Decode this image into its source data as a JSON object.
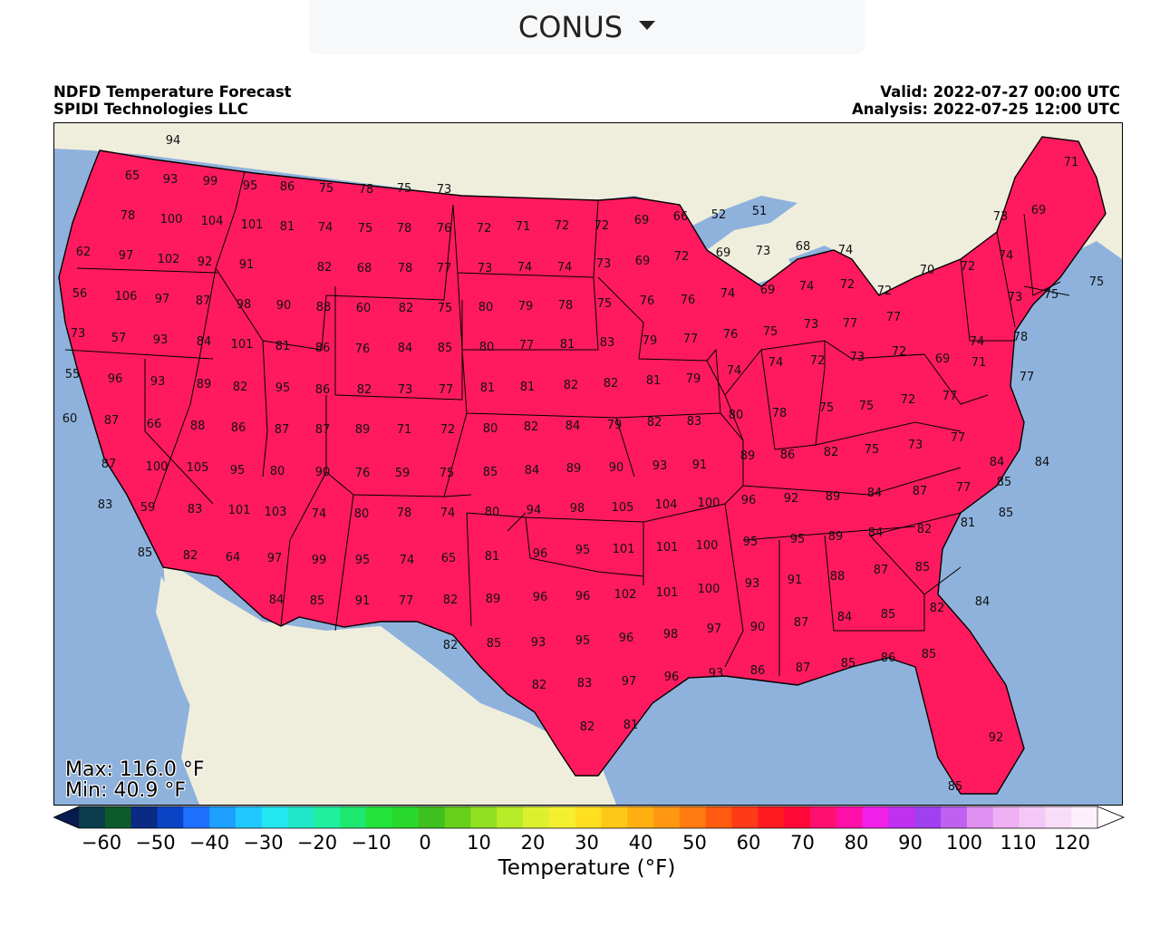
{
  "region_select": {
    "value": "CONUS",
    "icon": "caret-down-icon"
  },
  "header": {
    "title": "NDFD Temperature Forecast",
    "org": "SPIDI Technologies LLC",
    "valid": "Valid: 2022-07-27 00:00 UTC",
    "analysis": "Analysis: 2022-07-25 12:00 UTC"
  },
  "stats": {
    "max": "Max: 116.0 °F",
    "min": "Min: 40.9 °F"
  },
  "colorbar": {
    "label": "Temperature (°F)",
    "ticks": [
      "−60",
      "−50",
      "−40",
      "−30",
      "−20",
      "−10",
      "0",
      "10",
      "20",
      "30",
      "40",
      "50",
      "60",
      "70",
      "80",
      "90",
      "100",
      "110",
      "120"
    ],
    "colors": [
      "#091a4e",
      "#0a3c4b",
      "#0d5a2b",
      "#0a2a84",
      "#0a44c4",
      "#1f6fff",
      "#1ea0ff",
      "#20c8ff",
      "#22e6f0",
      "#1ee8c8",
      "#1ef0a0",
      "#1ee870",
      "#22e43a",
      "#28d82a",
      "#3ec020",
      "#66d01a",
      "#90e020",
      "#b8ec28",
      "#dcf030",
      "#f4f030",
      "#ffe020",
      "#ffc818",
      "#ffb010",
      "#ff9810",
      "#ff7a10",
      "#ff5a10",
      "#ff3a18",
      "#ff1a20",
      "#ff0838",
      "#ff1070",
      "#ff10a8",
      "#f020e8",
      "#c030f0",
      "#a040f0",
      "#c060f0",
      "#e090f0",
      "#f0b0f4",
      "#f4c8f6",
      "#f8dcf8",
      "#fcf0fc",
      "#ffffff"
    ]
  },
  "map": {
    "stations": [
      {
        "v": "94"
      },
      {
        "v": "65"
      },
      {
        "v": "93"
      },
      {
        "v": "99"
      },
      {
        "v": "95"
      },
      {
        "v": "86"
      },
      {
        "v": "75"
      },
      {
        "v": "78"
      },
      {
        "v": "75"
      },
      {
        "v": "73"
      },
      {
        "v": "78"
      },
      {
        "v": "100"
      },
      {
        "v": "104"
      },
      {
        "v": "101"
      },
      {
        "v": "81"
      },
      {
        "v": "74"
      },
      {
        "v": "75"
      },
      {
        "v": "78"
      },
      {
        "v": "76"
      },
      {
        "v": "72"
      },
      {
        "v": "71"
      },
      {
        "v": "72"
      },
      {
        "v": "72"
      },
      {
        "v": "69"
      },
      {
        "v": "66"
      },
      {
        "v": "52"
      },
      {
        "v": "51"
      },
      {
        "v": "71"
      },
      {
        "v": "73"
      },
      {
        "v": "69"
      },
      {
        "v": "62"
      },
      {
        "v": "97"
      },
      {
        "v": "102"
      },
      {
        "v": "92"
      },
      {
        "v": "91"
      },
      {
        "v": "82"
      },
      {
        "v": "68"
      },
      {
        "v": "78"
      },
      {
        "v": "77"
      },
      {
        "v": "73"
      },
      {
        "v": "74"
      },
      {
        "v": "74"
      },
      {
        "v": "73"
      },
      {
        "v": "69"
      },
      {
        "v": "72"
      },
      {
        "v": "69"
      },
      {
        "v": "73"
      },
      {
        "v": "68"
      },
      {
        "v": "74"
      },
      {
        "v": "70"
      },
      {
        "v": "72"
      },
      {
        "v": "74"
      },
      {
        "v": "56"
      },
      {
        "v": "106"
      },
      {
        "v": "97"
      },
      {
        "v": "87"
      },
      {
        "v": "98"
      },
      {
        "v": "90"
      },
      {
        "v": "88"
      },
      {
        "v": "60"
      },
      {
        "v": "82"
      },
      {
        "v": "75"
      },
      {
        "v": "80"
      },
      {
        "v": "79"
      },
      {
        "v": "78"
      },
      {
        "v": "75"
      },
      {
        "v": "76"
      },
      {
        "v": "76"
      },
      {
        "v": "74"
      },
      {
        "v": "69"
      },
      {
        "v": "74"
      },
      {
        "v": "72"
      },
      {
        "v": "72"
      },
      {
        "v": "73"
      },
      {
        "v": "75"
      },
      {
        "v": "75"
      },
      {
        "v": "73"
      },
      {
        "v": "57"
      },
      {
        "v": "93"
      },
      {
        "v": "84"
      },
      {
        "v": "101"
      },
      {
        "v": "81"
      },
      {
        "v": "86"
      },
      {
        "v": "76"
      },
      {
        "v": "84"
      },
      {
        "v": "85"
      },
      {
        "v": "80"
      },
      {
        "v": "77"
      },
      {
        "v": "81"
      },
      {
        "v": "83"
      },
      {
        "v": "79"
      },
      {
        "v": "77"
      },
      {
        "v": "76"
      },
      {
        "v": "75"
      },
      {
        "v": "73"
      },
      {
        "v": "77"
      },
      {
        "v": "77"
      },
      {
        "v": "74"
      },
      {
        "v": "78"
      },
      {
        "v": "55"
      },
      {
        "v": "96"
      },
      {
        "v": "93"
      },
      {
        "v": "89"
      },
      {
        "v": "82"
      },
      {
        "v": "95"
      },
      {
        "v": "86"
      },
      {
        "v": "82"
      },
      {
        "v": "73"
      },
      {
        "v": "77"
      },
      {
        "v": "81"
      },
      {
        "v": "81"
      },
      {
        "v": "82"
      },
      {
        "v": "82"
      },
      {
        "v": "81"
      },
      {
        "v": "79"
      },
      {
        "v": "74"
      },
      {
        "v": "74"
      },
      {
        "v": "72"
      },
      {
        "v": "73"
      },
      {
        "v": "72"
      },
      {
        "v": "69"
      },
      {
        "v": "71"
      },
      {
        "v": "77"
      },
      {
        "v": "60"
      },
      {
        "v": "87"
      },
      {
        "v": "66"
      },
      {
        "v": "88"
      },
      {
        "v": "86"
      },
      {
        "v": "87"
      },
      {
        "v": "87"
      },
      {
        "v": "89"
      },
      {
        "v": "71"
      },
      {
        "v": "72"
      },
      {
        "v": "80"
      },
      {
        "v": "82"
      },
      {
        "v": "84"
      },
      {
        "v": "79"
      },
      {
        "v": "82"
      },
      {
        "v": "83"
      },
      {
        "v": "80"
      },
      {
        "v": "78"
      },
      {
        "v": "75"
      },
      {
        "v": "75"
      },
      {
        "v": "72"
      },
      {
        "v": "77"
      },
      {
        "v": "87"
      },
      {
        "v": "100"
      },
      {
        "v": "105"
      },
      {
        "v": "95"
      },
      {
        "v": "80"
      },
      {
        "v": "90"
      },
      {
        "v": "76"
      },
      {
        "v": "59"
      },
      {
        "v": "75"
      },
      {
        "v": "85"
      },
      {
        "v": "84"
      },
      {
        "v": "89"
      },
      {
        "v": "90"
      },
      {
        "v": "93"
      },
      {
        "v": "91"
      },
      {
        "v": "89"
      },
      {
        "v": "86"
      },
      {
        "v": "82"
      },
      {
        "v": "75"
      },
      {
        "v": "73"
      },
      {
        "v": "77"
      },
      {
        "v": "84"
      },
      {
        "v": "84"
      },
      {
        "v": "83"
      },
      {
        "v": "59"
      },
      {
        "v": "83"
      },
      {
        "v": "101"
      },
      {
        "v": "103"
      },
      {
        "v": "74"
      },
      {
        "v": "80"
      },
      {
        "v": "78"
      },
      {
        "v": "74"
      },
      {
        "v": "80"
      },
      {
        "v": "94"
      },
      {
        "v": "98"
      },
      {
        "v": "105"
      },
      {
        "v": "104"
      },
      {
        "v": "100"
      },
      {
        "v": "96"
      },
      {
        "v": "92"
      },
      {
        "v": "89"
      },
      {
        "v": "84"
      },
      {
        "v": "87"
      },
      {
        "v": "77"
      },
      {
        "v": "85"
      },
      {
        "v": "85"
      },
      {
        "v": "82"
      },
      {
        "v": "64"
      },
      {
        "v": "97"
      },
      {
        "v": "99"
      },
      {
        "v": "95"
      },
      {
        "v": "74"
      },
      {
        "v": "65"
      },
      {
        "v": "81"
      },
      {
        "v": "96"
      },
      {
        "v": "95"
      },
      {
        "v": "101"
      },
      {
        "v": "101"
      },
      {
        "v": "100"
      },
      {
        "v": "95"
      },
      {
        "v": "95"
      },
      {
        "v": "89"
      },
      {
        "v": "84"
      },
      {
        "v": "82"
      },
      {
        "v": "81"
      },
      {
        "v": "85"
      },
      {
        "v": "84"
      },
      {
        "v": "85"
      },
      {
        "v": "91"
      },
      {
        "v": "77"
      },
      {
        "v": "82"
      },
      {
        "v": "89"
      },
      {
        "v": "96"
      },
      {
        "v": "96"
      },
      {
        "v": "102"
      },
      {
        "v": "101"
      },
      {
        "v": "100"
      },
      {
        "v": "93"
      },
      {
        "v": "91"
      },
      {
        "v": "88"
      },
      {
        "v": "87"
      },
      {
        "v": "85"
      },
      {
        "v": "82"
      },
      {
        "v": "85"
      },
      {
        "v": "93"
      },
      {
        "v": "95"
      },
      {
        "v": "96"
      },
      {
        "v": "98"
      },
      {
        "v": "97"
      },
      {
        "v": "90"
      },
      {
        "v": "87"
      },
      {
        "v": "84"
      },
      {
        "v": "85"
      },
      {
        "v": "82"
      },
      {
        "v": "84"
      },
      {
        "v": "82"
      },
      {
        "v": "83"
      },
      {
        "v": "97"
      },
      {
        "v": "96"
      },
      {
        "v": "93"
      },
      {
        "v": "86"
      },
      {
        "v": "87"
      },
      {
        "v": "85"
      },
      {
        "v": "86"
      },
      {
        "v": "85"
      },
      {
        "v": "82"
      },
      {
        "v": "81"
      },
      {
        "v": "92"
      },
      {
        "v": "85"
      },
      {
        "v": "84"
      },
      {
        "v": "83"
      }
    ]
  }
}
